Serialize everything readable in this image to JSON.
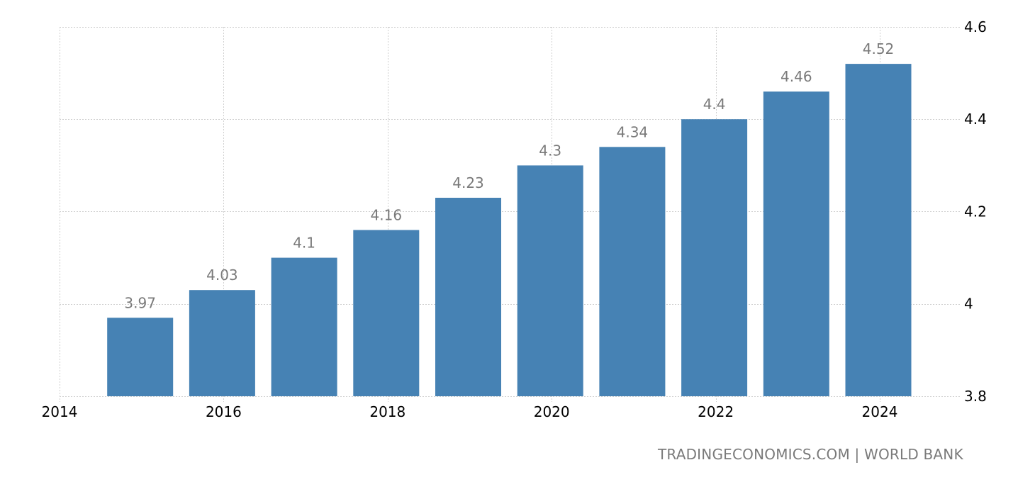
{
  "chart_data": {
    "type": "bar",
    "title": "",
    "xlabel": "",
    "ylabel": "",
    "categories": [
      "2015",
      "2016",
      "2017",
      "2018",
      "2019",
      "2020",
      "2021",
      "2022",
      "2023",
      "2024"
    ],
    "values": [
      3.97,
      4.03,
      4.1,
      4.16,
      4.23,
      4.3,
      4.34,
      4.4,
      4.46,
      4.52
    ],
    "value_labels": [
      "3.97",
      "4.03",
      "4.1",
      "4.16",
      "4.23",
      "4.3",
      "4.34",
      "4.4",
      "4.46",
      "4.52"
    ],
    "ylim": [
      3.8,
      4.6
    ],
    "yticks": [
      "4.6",
      "4.4",
      "4.2",
      "4",
      "3.8"
    ],
    "xticks": [
      "2014",
      "2016",
      "2018",
      "2020",
      "2022",
      "2024"
    ],
    "grid": true,
    "legend": null,
    "y_axis_position": "right",
    "bar_color": "#4682b4"
  },
  "footer": {
    "source": "TRADINGECONOMICS.COM | WORLD BANK"
  }
}
